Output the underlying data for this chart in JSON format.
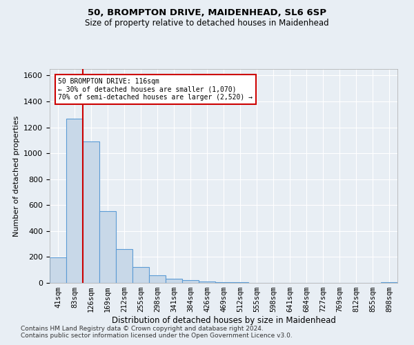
{
  "title1": "50, BROMPTON DRIVE, MAIDENHEAD, SL6 6SP",
  "title2": "Size of property relative to detached houses in Maidenhead",
  "xlabel": "Distribution of detached houses by size in Maidenhead",
  "ylabel": "Number of detached properties",
  "footer1": "Contains HM Land Registry data © Crown copyright and database right 2024.",
  "footer2": "Contains public sector information licensed under the Open Government Licence v3.0.",
  "annotation_line1": "50 BROMPTON DRIVE: 116sqm",
  "annotation_line2": "← 30% of detached houses are smaller (1,070)",
  "annotation_line3": "70% of semi-detached houses are larger (2,520) →",
  "bar_categories": [
    "41sqm",
    "83sqm",
    "126sqm",
    "169sqm",
    "212sqm",
    "255sqm",
    "298sqm",
    "341sqm",
    "384sqm",
    "426sqm",
    "469sqm",
    "512sqm",
    "555sqm",
    "598sqm",
    "641sqm",
    "684sqm",
    "727sqm",
    "769sqm",
    "812sqm",
    "855sqm",
    "898sqm"
  ],
  "bar_values": [
    195,
    1265,
    1090,
    555,
    260,
    120,
    60,
    30,
    20,
    10,
    5,
    3,
    2,
    1,
    1,
    1,
    1,
    0,
    0,
    0,
    5
  ],
  "bar_color": "#c8d8e8",
  "bar_edge_color": "#5b9bd5",
  "vline_color": "#cc0000",
  "ylim": [
    0,
    1650
  ],
  "yticks": [
    0,
    200,
    400,
    600,
    800,
    1000,
    1200,
    1400,
    1600
  ],
  "background_color": "#e8eef4",
  "plot_background": "#e8eef4",
  "grid_color": "#ffffff",
  "annotation_box_color": "#ffffff",
  "annotation_box_edge": "#cc0000",
  "title1_fontsize": 9.5,
  "title2_fontsize": 8.5,
  "ylabel_fontsize": 8,
  "xlabel_fontsize": 8.5,
  "tick_fontsize": 8,
  "xtick_fontsize": 7.5,
  "footer_fontsize": 6.5
}
